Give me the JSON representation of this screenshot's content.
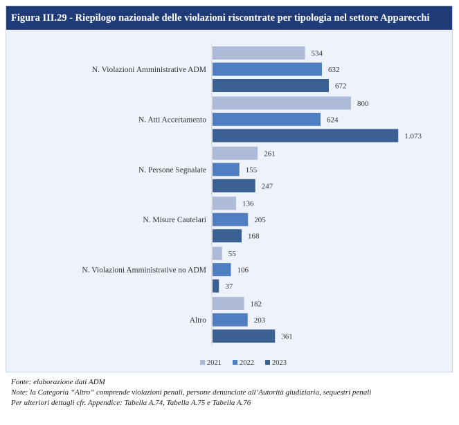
{
  "figure": {
    "title": "Figura III.29 - Riepilogo nazionale delle violazioni riscontrate per tipologia nel settore Apparecchi"
  },
  "chart_data": {
    "type": "bar",
    "orientation": "horizontal",
    "title": "Figura III.29 - Riepilogo nazionale delle violazioni riscontrate per tipologia nel settore Apparecchi",
    "categories": [
      "N. Violazioni Amministrative ADM",
      "N. Atti Accertamento",
      "N. Persone Segnalate",
      "N. Misure Cautelari",
      "N. Violazioni Amministrative no ADM",
      "Altro"
    ],
    "series": [
      {
        "name": "2021",
        "color": "#adbad8",
        "values": [
          534,
          800,
          261,
          136,
          55,
          182
        ],
        "labels": [
          "534",
          "800",
          "261",
          "136",
          "55",
          "182"
        ]
      },
      {
        "name": "2022",
        "color": "#4f7fc1",
        "values": [
          632,
          624,
          155,
          205,
          106,
          203
        ],
        "labels": [
          "632",
          "624",
          "155",
          "205",
          "106",
          "203"
        ]
      },
      {
        "name": "2023",
        "color": "#3b6193",
        "values": [
          672,
          1073,
          247,
          168,
          37,
          361
        ],
        "labels": [
          "672",
          "1.073",
          "247",
          "168",
          "37",
          "361"
        ]
      }
    ],
    "xlim": [
      0,
      1200
    ],
    "grid": false,
    "legend": "bottom-center",
    "xlabel": "",
    "ylabel": ""
  },
  "notes": {
    "source": "Fonte: elaborazione dati ADM",
    "note": "Note: la Categoria “Altro” comprende violazioni penali, persone denunciate all’Autorità giudiziaria, sequestri penali",
    "details": "Per ulteriori dettagli cfr. Appendice: Tabella A.74, Tabella A.75 e Tabella A.76"
  }
}
